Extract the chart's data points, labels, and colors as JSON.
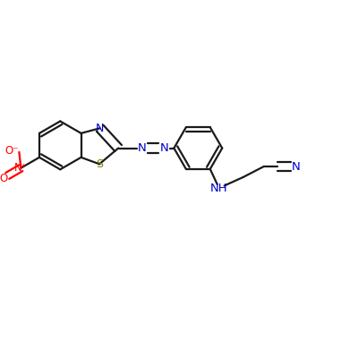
{
  "bg_color": "#ffffff",
  "bond_color": "#1a1a1a",
  "N_color": "#0000cc",
  "S_color": "#808000",
  "O_color": "#ff0000",
  "lw": 1.6,
  "dbo": 0.013,
  "figsize": [
    4.0,
    4.0
  ],
  "dpi": 100,
  "xlim": [
    0.0,
    1.0
  ],
  "ylim": [
    0.0,
    1.0
  ]
}
